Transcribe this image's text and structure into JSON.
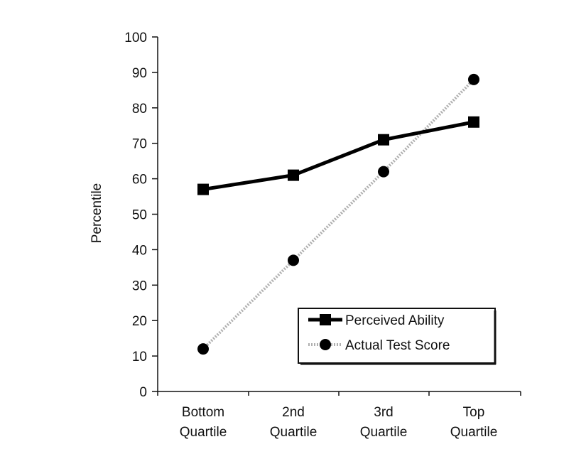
{
  "chart_data": {
    "type": "line",
    "title": "",
    "xlabel": "",
    "ylabel": "Percentile",
    "ylim": [
      0,
      100
    ],
    "yticks": [
      0,
      10,
      20,
      30,
      40,
      50,
      60,
      70,
      80,
      90,
      100
    ],
    "categories": [
      "Bottom Quartile",
      "2nd Quartile",
      "3rd Quartile",
      "Top Quartile"
    ],
    "category_lines": [
      [
        "Bottom",
        "Quartile"
      ],
      [
        "2nd",
        "Quartile"
      ],
      [
        "3rd",
        "Quartile"
      ],
      [
        "Top",
        "Quartile"
      ]
    ],
    "series": [
      {
        "name": "Perceived Ability",
        "marker": "square",
        "line": "solid",
        "color": "#000000",
        "values": [
          57,
          61,
          71,
          76
        ]
      },
      {
        "name": "Actual Test Score",
        "marker": "circle",
        "line": "dotted",
        "color": "#9a9a9a",
        "values": [
          12,
          37,
          62,
          88
        ]
      }
    ],
    "grid": false,
    "legend_position": "lower right (inside plot)"
  }
}
